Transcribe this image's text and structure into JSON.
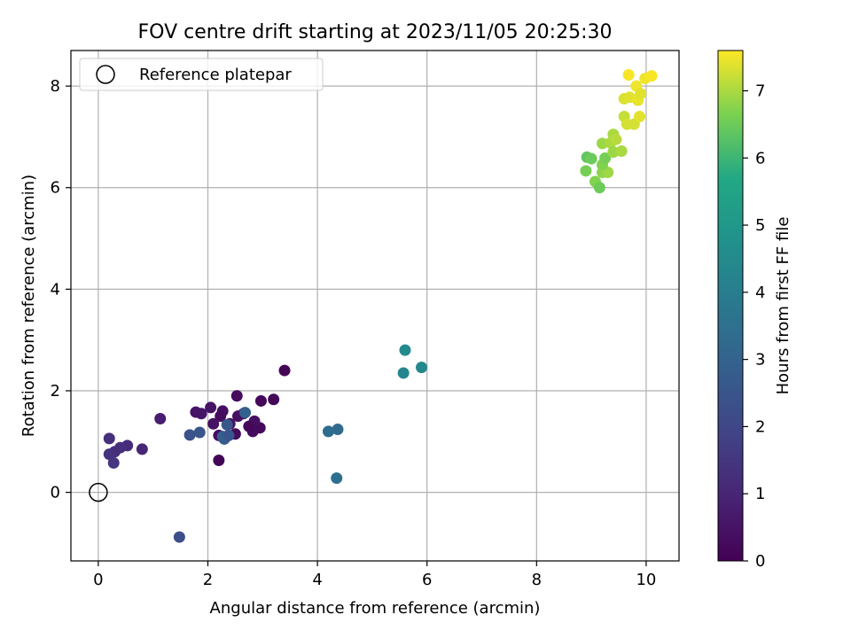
{
  "chart_data": {
    "type": "scatter",
    "title": "FOV centre drift starting at 2023/11/05 20:25:30",
    "xlabel": "Angular distance from reference (arcmin)",
    "ylabel": "Rotation from reference (arcmin)",
    "xlim": [
      -0.5,
      10.6
    ],
    "ylim": [
      -1.35,
      8.7
    ],
    "xticks": [
      0,
      2,
      4,
      6,
      8,
      10
    ],
    "yticks": [
      0,
      2,
      4,
      6,
      8
    ],
    "grid": true,
    "legend": {
      "placement": "top-left",
      "entries": [
        "Reference platepar"
      ]
    },
    "reference_point": {
      "name": "Reference platepar",
      "x": 0,
      "y": 0
    },
    "colorbar": {
      "label": "Hours from first FF file",
      "colormap": "viridis",
      "range": [
        0,
        7.6
      ],
      "ticks": [
        0,
        1,
        2,
        3,
        4,
        5,
        6,
        7
      ]
    },
    "points": [
      {
        "x": 3.4,
        "y": 2.4,
        "c": 0.1
      },
      {
        "x": 3.2,
        "y": 1.83,
        "c": 0.15
      },
      {
        "x": 2.97,
        "y": 1.8,
        "c": 0.2
      },
      {
        "x": 2.53,
        "y": 1.9,
        "c": 0.3
      },
      {
        "x": 2.95,
        "y": 1.27,
        "c": 0.25
      },
      {
        "x": 2.85,
        "y": 1.4,
        "c": 0.35
      },
      {
        "x": 2.82,
        "y": 1.2,
        "c": 0.3
      },
      {
        "x": 2.75,
        "y": 1.3,
        "c": 0.2
      },
      {
        "x": 2.65,
        "y": 1.55,
        "c": 0.45
      },
      {
        "x": 2.55,
        "y": 1.5,
        "c": 0.4
      },
      {
        "x": 2.5,
        "y": 1.15,
        "c": 0.3
      },
      {
        "x": 2.4,
        "y": 1.35,
        "c": 0.5
      },
      {
        "x": 2.27,
        "y": 1.6,
        "c": 0.4
      },
      {
        "x": 2.23,
        "y": 1.5,
        "c": 0.3
      },
      {
        "x": 2.2,
        "y": 1.12,
        "c": 0.35
      },
      {
        "x": 2.1,
        "y": 1.35,
        "c": 0.45
      },
      {
        "x": 2.05,
        "y": 1.67,
        "c": 0.5
      },
      {
        "x": 1.88,
        "y": 1.55,
        "c": 0.55
      },
      {
        "x": 1.78,
        "y": 1.58,
        "c": 0.5
      },
      {
        "x": 2.2,
        "y": 0.63,
        "c": 0.1
      },
      {
        "x": 1.13,
        "y": 1.45,
        "c": 0.8
      },
      {
        "x": 0.8,
        "y": 0.85,
        "c": 1.0
      },
      {
        "x": 0.53,
        "y": 0.92,
        "c": 1.2
      },
      {
        "x": 0.4,
        "y": 0.88,
        "c": 1.3
      },
      {
        "x": 0.3,
        "y": 0.8,
        "c": 1.25
      },
      {
        "x": 0.2,
        "y": 0.75,
        "c": 1.4
      },
      {
        "x": 0.2,
        "y": 1.06,
        "c": 1.3
      },
      {
        "x": 0.28,
        "y": 0.58,
        "c": 1.5
      },
      {
        "x": 1.48,
        "y": -0.88,
        "c": 2.3
      },
      {
        "x": 1.67,
        "y": 1.13,
        "c": 2.4
      },
      {
        "x": 1.85,
        "y": 1.18,
        "c": 2.5
      },
      {
        "x": 2.35,
        "y": 1.33,
        "c": 2.6
      },
      {
        "x": 2.3,
        "y": 1.05,
        "c": 2.7
      },
      {
        "x": 2.27,
        "y": 1.1,
        "c": 2.8
      },
      {
        "x": 2.38,
        "y": 1.12,
        "c": 2.5
      },
      {
        "x": 2.68,
        "y": 1.57,
        "c": 2.9
      },
      {
        "x": 4.2,
        "y": 1.2,
        "c": 3.4
      },
      {
        "x": 4.37,
        "y": 1.24,
        "c": 3.3
      },
      {
        "x": 4.35,
        "y": 0.28,
        "c": 3.5
      },
      {
        "x": 5.57,
        "y": 2.35,
        "c": 4.3
      },
      {
        "x": 5.6,
        "y": 2.8,
        "c": 4.5
      },
      {
        "x": 5.9,
        "y": 2.46,
        "c": 4.4
      },
      {
        "x": 8.92,
        "y": 6.6,
        "c": 6.4
      },
      {
        "x": 9.0,
        "y": 6.57,
        "c": 6.5
      },
      {
        "x": 8.9,
        "y": 6.33,
        "c": 6.6
      },
      {
        "x": 9.07,
        "y": 6.12,
        "c": 6.7
      },
      {
        "x": 9.15,
        "y": 6.0,
        "c": 6.5
      },
      {
        "x": 9.2,
        "y": 6.3,
        "c": 6.8
      },
      {
        "x": 9.3,
        "y": 6.3,
        "c": 6.9
      },
      {
        "x": 9.2,
        "y": 6.45,
        "c": 6.7
      },
      {
        "x": 9.25,
        "y": 6.58,
        "c": 6.6
      },
      {
        "x": 9.2,
        "y": 6.87,
        "c": 6.9
      },
      {
        "x": 9.35,
        "y": 6.88,
        "c": 7.0
      },
      {
        "x": 9.4,
        "y": 7.05,
        "c": 7.0
      },
      {
        "x": 9.45,
        "y": 6.95,
        "c": 7.1
      },
      {
        "x": 9.4,
        "y": 6.7,
        "c": 6.9
      },
      {
        "x": 9.55,
        "y": 6.72,
        "c": 7.0
      },
      {
        "x": 9.6,
        "y": 7.4,
        "c": 7.2
      },
      {
        "x": 9.65,
        "y": 7.25,
        "c": 7.3
      },
      {
        "x": 9.78,
        "y": 7.25,
        "c": 7.3
      },
      {
        "x": 9.88,
        "y": 7.4,
        "c": 7.4
      },
      {
        "x": 9.6,
        "y": 7.75,
        "c": 7.35
      },
      {
        "x": 9.7,
        "y": 7.78,
        "c": 7.4
      },
      {
        "x": 9.85,
        "y": 7.72,
        "c": 7.45
      },
      {
        "x": 9.82,
        "y": 8.0,
        "c": 7.5
      },
      {
        "x": 9.9,
        "y": 7.85,
        "c": 7.4
      },
      {
        "x": 9.98,
        "y": 8.15,
        "c": 7.5
      },
      {
        "x": 10.1,
        "y": 8.2,
        "c": 7.55
      },
      {
        "x": 9.68,
        "y": 8.22,
        "c": 7.55
      }
    ]
  }
}
